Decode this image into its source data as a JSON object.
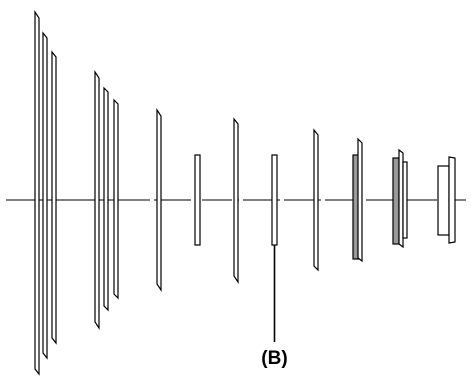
{
  "diagram": {
    "callout_label": "(B)",
    "colors": {
      "background": "#ffffff",
      "stroke": "#000000",
      "element_fill": "#ffffff",
      "shaded_fill": "#9a9a9a"
    }
  }
}
